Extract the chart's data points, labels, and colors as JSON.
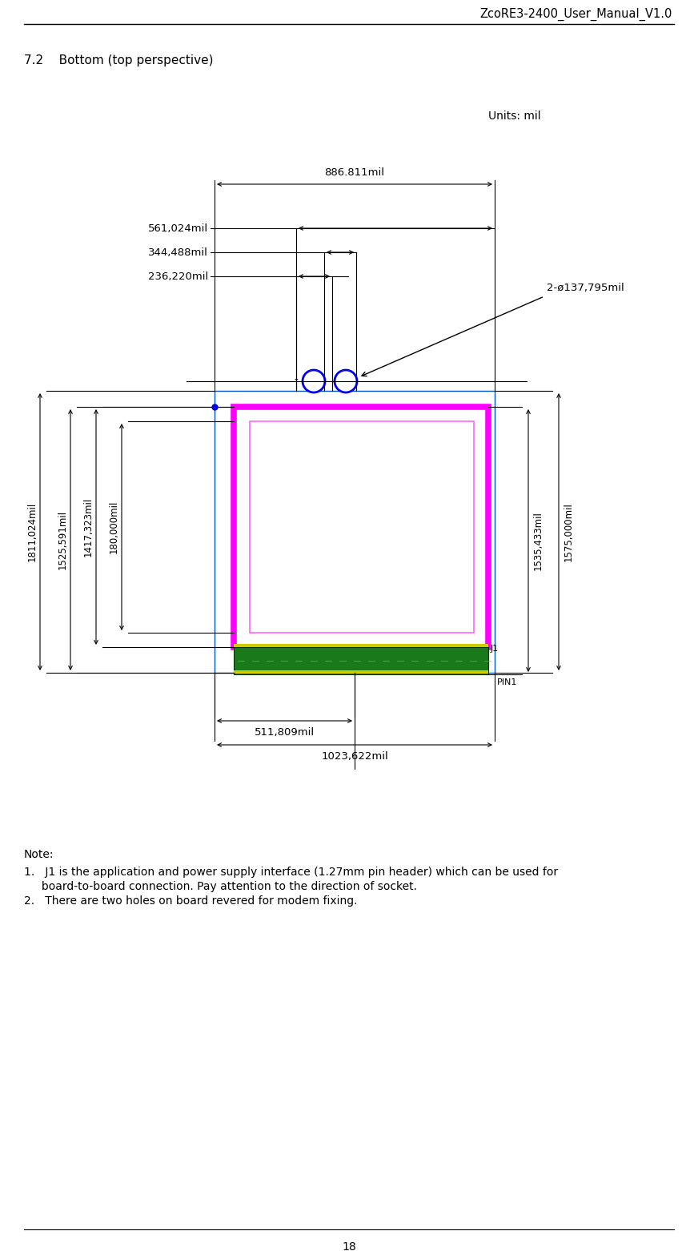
{
  "title": "ZcoRE3-2400_User_Manual_V1.0",
  "section": "7.2    Bottom (top perspective)",
  "units_label": "Units: mil",
  "bg_color": "#ffffff",
  "notes_title": "Note:",
  "note1": "1.   J1 is the application and power supply interface (1.27mm pin header) which can be used for",
  "note1b": "     board-to-board connection. Pay attention to the direction of socket.",
  "note2": "2.   There are two holes on board revered for modem fixing.",
  "page_number": "18",
  "label_886": "886.811mil",
  "label_561": "561,024mil",
  "label_344": "344,488mil",
  "label_236": "236,220mil",
  "label_2hole": "2-ø137,795mil",
  "label_1811": "1811,024mil",
  "label_1525": "1525,591mil",
  "label_1417": "1417,323mil",
  "label_180": "180,000mil",
  "label_1535": "1535,433mil",
  "label_1575": "1575,000mil",
  "label_511": "511,809mil",
  "label_1023": "1023,622mil",
  "label_j1": "J1",
  "label_pin1": "PIN1"
}
